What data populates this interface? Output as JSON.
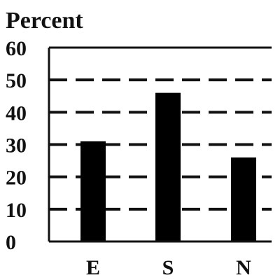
{
  "chart_data": {
    "type": "bar",
    "title": "",
    "ylabel": "Percent",
    "xlabel": "",
    "categories": [
      "E",
      "S",
      "N"
    ],
    "values": [
      31,
      46,
      26
    ],
    "ylim": [
      0,
      60
    ],
    "yticks": [
      0,
      10,
      20,
      30,
      40,
      50,
      60
    ],
    "grid": "dashed horizontal",
    "bar_color": "#000000"
  }
}
